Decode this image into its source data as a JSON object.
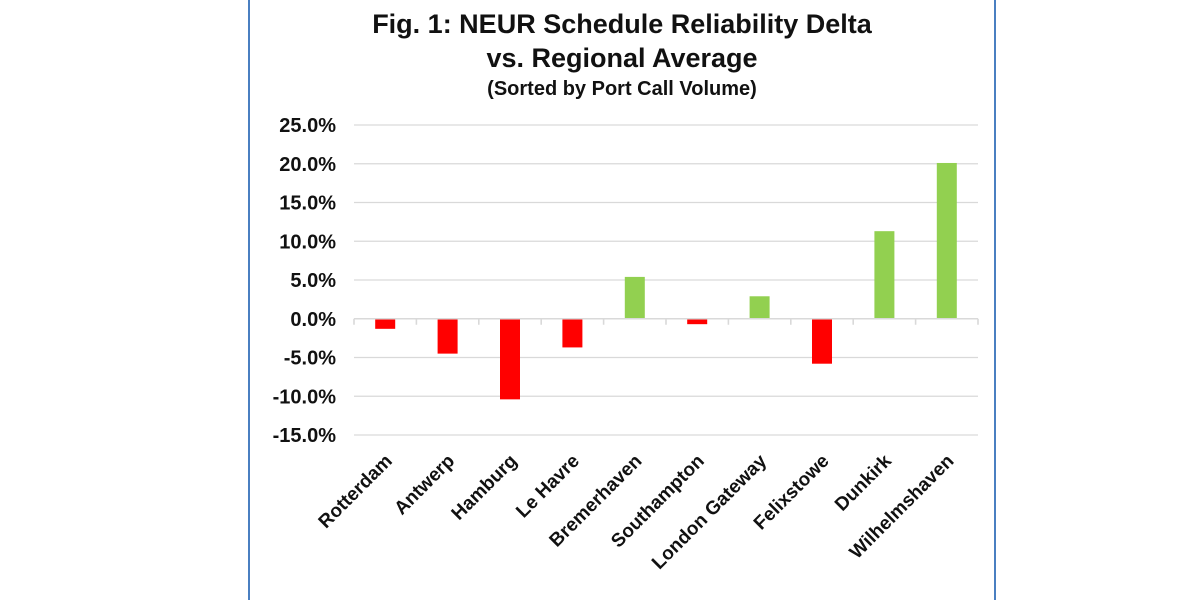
{
  "chart_data": {
    "type": "bar",
    "title_line1": "Fig. 1: NEUR Schedule Reliability Delta",
    "title_line2": "vs. Regional Average",
    "subtitle": "(Sorted by Port Call Volume)",
    "categories": [
      "Rotterdam",
      "Antwerp",
      "Hamburg",
      "Le Havre",
      "Bremerhaven",
      "Southampton",
      "London Gateway",
      "Felixstowe",
      "Dunkirk",
      "Wilhelmshaven"
    ],
    "values": [
      -1.3,
      -4.5,
      -10.4,
      -3.7,
      5.4,
      -0.7,
      2.9,
      -5.8,
      11.3,
      20.1
    ],
    "ylim": [
      -15,
      25
    ],
    "yticks": [
      25,
      20,
      15,
      10,
      5,
      0,
      -5,
      -10,
      -15
    ],
    "ytick_labels": [
      "25.0%",
      "20.0%",
      "15.0%",
      "10.0%",
      "5.0%",
      "0.0%",
      "-5.0%",
      "-10.0%",
      "-15.0%"
    ],
    "xlabel": "",
    "ylabel": "",
    "grid": true,
    "colors": {
      "positive": "#92d050",
      "negative": "#ff0000",
      "grid": "#d9d9d9",
      "frame": "#4a7fc1"
    }
  }
}
